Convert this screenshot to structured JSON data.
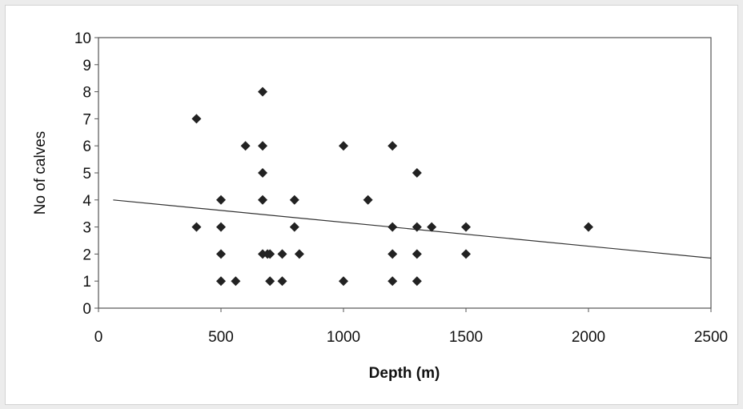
{
  "chart_data": {
    "type": "scatter",
    "xlabel": "Depth (m)",
    "ylabel": "No of calves",
    "xlim": [
      0,
      2500
    ],
    "ylim": [
      0,
      10
    ],
    "x_ticks": [
      "0",
      "500",
      "1000",
      "1500",
      "2000",
      "2500"
    ],
    "y_ticks": [
      "0",
      "1",
      "2",
      "3",
      "4",
      "5",
      "6",
      "7",
      "8",
      "9",
      "10"
    ],
    "grid": false,
    "legend": "none",
    "marker_color": "#222222",
    "trendline": {
      "type": "linear",
      "x": [
        60,
        2500
      ],
      "y": [
        4.0,
        1.85
      ]
    },
    "series": [
      {
        "points": [
          [
            400,
            7
          ],
          [
            400,
            3
          ],
          [
            500,
            4
          ],
          [
            500,
            3
          ],
          [
            500,
            2
          ],
          [
            500,
            1
          ],
          [
            560,
            1
          ],
          [
            600,
            6
          ],
          [
            670,
            8
          ],
          [
            670,
            6
          ],
          [
            670,
            5
          ],
          [
            670,
            4
          ],
          [
            670,
            2
          ],
          [
            690,
            2
          ],
          [
            700,
            2
          ],
          [
            700,
            1
          ],
          [
            750,
            2
          ],
          [
            750,
            1
          ],
          [
            800,
            4
          ],
          [
            800,
            3
          ],
          [
            820,
            2
          ],
          [
            1000,
            6
          ],
          [
            1000,
            1
          ],
          [
            1100,
            4
          ],
          [
            1200,
            6
          ],
          [
            1200,
            3
          ],
          [
            1200,
            2
          ],
          [
            1200,
            1
          ],
          [
            1300,
            5
          ],
          [
            1300,
            3
          ],
          [
            1300,
            2
          ],
          [
            1300,
            1
          ],
          [
            1360,
            3
          ],
          [
            1500,
            3
          ],
          [
            1500,
            2
          ],
          [
            2000,
            3
          ]
        ]
      }
    ]
  }
}
